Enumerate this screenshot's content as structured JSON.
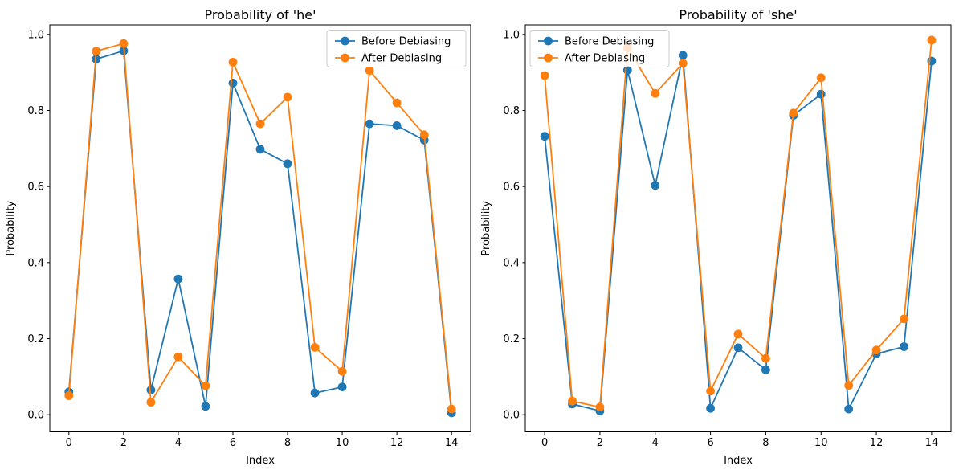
{
  "figure": {
    "background": "#ffffff",
    "text_color": "#000000",
    "spine_color": "#000000"
  },
  "chart_data": [
    {
      "type": "line",
      "title": "Probability of 'he'",
      "xlabel": "Index",
      "ylabel": "Probability",
      "x": [
        0,
        1,
        2,
        3,
        4,
        5,
        6,
        7,
        8,
        9,
        10,
        11,
        12,
        13,
        14
      ],
      "series": [
        {
          "name": "Before Debiasing",
          "color": "#1f77b4",
          "marker": "circle",
          "values": [
            0.06,
            0.935,
            0.957,
            0.065,
            0.357,
            0.022,
            0.872,
            0.698,
            0.66,
            0.057,
            0.073,
            0.765,
            0.76,
            0.722,
            0.005
          ]
        },
        {
          "name": "After Debiasing",
          "color": "#ff7f0e",
          "marker": "circle",
          "values": [
            0.05,
            0.956,
            0.976,
            0.033,
            0.152,
            0.076,
            0.927,
            0.765,
            0.835,
            0.177,
            0.114,
            0.905,
            0.82,
            0.736,
            0.015
          ]
        }
      ],
      "xticks": [
        0,
        2,
        4,
        6,
        8,
        10,
        12,
        14
      ],
      "yticks": [
        "0.0",
        "0.2",
        "0.4",
        "0.6",
        "0.8",
        "1.0"
      ],
      "ytick_values": [
        0.0,
        0.2,
        0.4,
        0.6,
        0.8,
        1.0
      ],
      "xlim": [
        -0.7,
        14.7
      ],
      "ylim": [
        -0.045,
        1.025
      ],
      "grid": false,
      "legend": {
        "position": "upper-right"
      }
    },
    {
      "type": "line",
      "title": "Probability of 'she'",
      "xlabel": "Index",
      "ylabel": "Probability",
      "x": [
        0,
        1,
        2,
        3,
        4,
        5,
        6,
        7,
        8,
        9,
        10,
        11,
        12,
        13,
        14
      ],
      "series": [
        {
          "name": "Before Debiasing",
          "color": "#1f77b4",
          "marker": "circle",
          "values": [
            0.732,
            0.028,
            0.01,
            0.906,
            0.603,
            0.945,
            0.017,
            0.176,
            0.118,
            0.787,
            0.843,
            0.015,
            0.16,
            0.179,
            0.93
          ]
        },
        {
          "name": "After Debiasing",
          "color": "#ff7f0e",
          "marker": "circle",
          "values": [
            0.892,
            0.036,
            0.02,
            0.965,
            0.845,
            0.924,
            0.062,
            0.212,
            0.148,
            0.793,
            0.886,
            0.077,
            0.17,
            0.252,
            0.985
          ]
        }
      ],
      "xticks": [
        0,
        2,
        4,
        6,
        8,
        10,
        12,
        14
      ],
      "yticks": [
        "0.0",
        "0.2",
        "0.4",
        "0.6",
        "0.8",
        "1.0"
      ],
      "ytick_values": [
        0.0,
        0.2,
        0.4,
        0.6,
        0.8,
        1.0
      ],
      "xlim": [
        -0.7,
        14.7
      ],
      "ylim": [
        -0.045,
        1.025
      ],
      "grid": false,
      "legend": {
        "position": "upper-left"
      }
    }
  ]
}
